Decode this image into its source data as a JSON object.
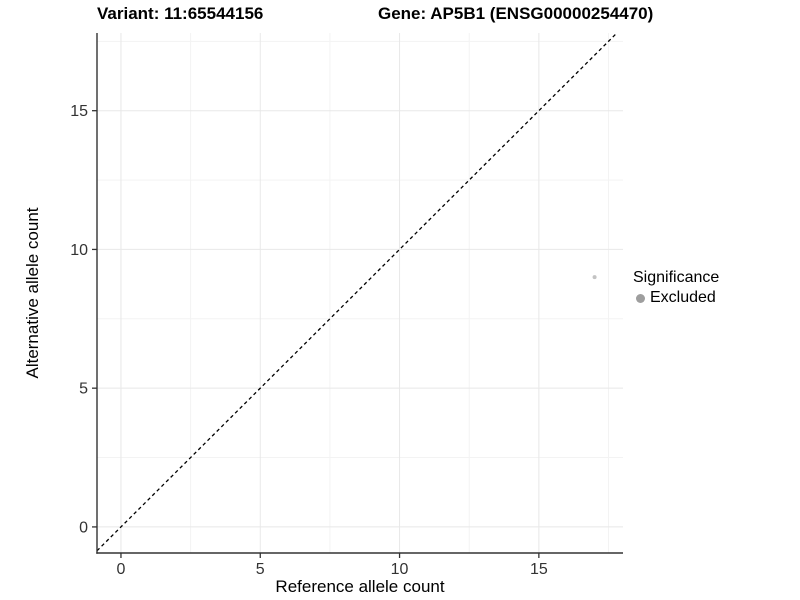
{
  "titles": {
    "variant": "Variant: 11:65544156",
    "gene": "Gene: AP5B1 (ENSG00000254470)"
  },
  "chart_data": {
    "type": "scatter",
    "xlabel": "Reference allele count",
    "ylabel": "Alternative allele count",
    "xlim": [
      -0.86,
      18.02
    ],
    "ylim": [
      -0.94,
      17.8
    ],
    "x_ticks": [
      0,
      5,
      10,
      15
    ],
    "y_ticks": [
      0,
      5,
      10,
      15
    ],
    "x_minor_ticks": [
      2.5,
      7.5,
      12.5,
      17.5
    ],
    "y_minor_ticks": [
      2.5,
      7.5,
      12.5,
      17.5
    ],
    "grid": "major+minor",
    "identity_line": {
      "slope": 1,
      "intercept": 0,
      "style": "dashed"
    },
    "series": [
      {
        "name": "Excluded",
        "points": [
          {
            "x": 17,
            "y": 9
          }
        ]
      }
    ],
    "legend": {
      "title": "Significance",
      "position": "right",
      "entries": [
        {
          "label": "Excluded",
          "color": "#9e9e9e"
        }
      ]
    },
    "colors": {
      "point": "#c3c3c3",
      "legend_point": "#9e9e9e",
      "axis_line": "#333333",
      "tick": "#333333",
      "tick_label": "#333333",
      "grid_major": "#e8e8e8",
      "grid_minor": "#f3f3f3",
      "identity_line": "#000000",
      "background": "#ffffff"
    }
  }
}
